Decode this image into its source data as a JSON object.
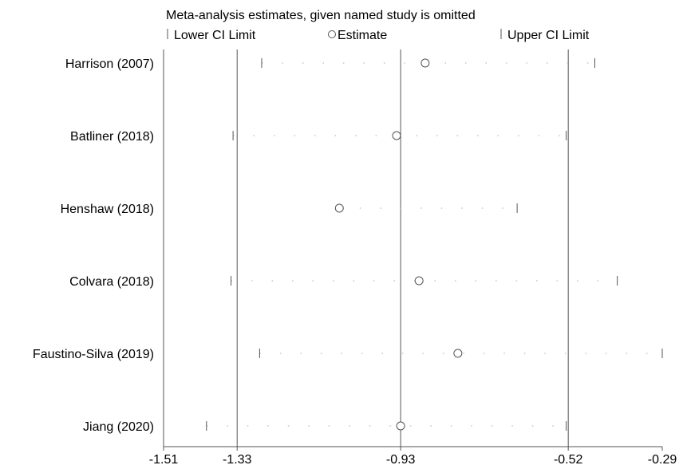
{
  "chart_data": {
    "type": "scatter",
    "title": "Meta-analysis estimates, given named study is omitted",
    "legend": {
      "placement": "top",
      "entries": [
        {
          "key": "lower",
          "marker": "tick",
          "label": "Lower CI Limit"
        },
        {
          "key": "estimate",
          "marker": "circle",
          "label": "Estimate"
        },
        {
          "key": "upper",
          "marker": "tick",
          "label": "Upper CI Limit"
        }
      ]
    },
    "xlim": [
      -1.51,
      -0.29
    ],
    "xticks": [
      -1.51,
      -1.33,
      -0.93,
      -0.52,
      -0.29
    ],
    "xtick_labels": [
      "-1.51",
      "-1.33",
      "-0.93",
      "-0.52",
      "-0.29"
    ],
    "reference_lines": [
      -1.33,
      -0.93,
      -0.52
    ],
    "grid": false,
    "studies": [
      {
        "label": "Harrison (2007)",
        "lower": -1.27,
        "estimate": -0.87,
        "upper": -0.455
      },
      {
        "label": "Batliner (2018)",
        "lower": -1.34,
        "estimate": -0.94,
        "upper": -0.525
      },
      {
        "label": "Henshaw (2018)",
        "lower": null,
        "estimate": -1.08,
        "upper": -0.645
      },
      {
        "label": "Colvara (2018)",
        "lower": -1.345,
        "estimate": -0.885,
        "upper": -0.4
      },
      {
        "label": "Faustino-Silva (2019)",
        "lower": -1.275,
        "estimate": -0.79,
        "upper": -0.29
      },
      {
        "label": "Jiang (2020)",
        "lower": -1.405,
        "estimate": -0.93,
        "upper": -0.525
      }
    ]
  }
}
